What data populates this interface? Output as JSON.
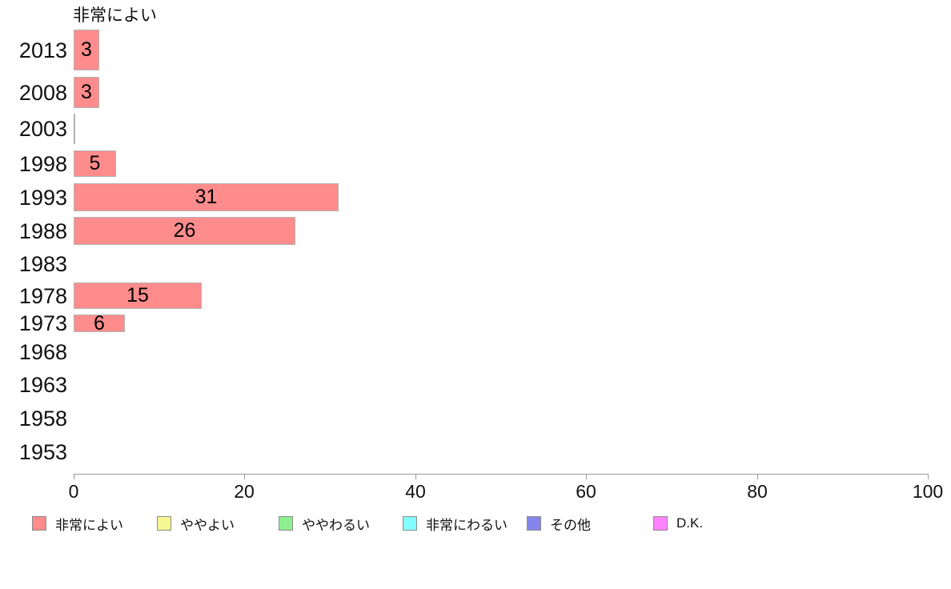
{
  "chart_data": {
    "type": "bar",
    "orientation": "horizontal",
    "title": "非常によい",
    "xlabel": "",
    "ylabel": "",
    "categories": [
      "2013",
      "2008",
      "2003",
      "1998",
      "1993",
      "1988",
      "1983",
      "1978",
      "1973",
      "1968",
      "1963",
      "1958",
      "1953"
    ],
    "values": [
      3,
      3,
      0,
      5,
      31,
      26,
      null,
      15,
      6,
      null,
      null,
      null,
      null
    ],
    "bar_labels": [
      "3",
      "3",
      "",
      "5",
      "31",
      "26",
      "",
      "15",
      "6",
      "",
      "",
      "",
      ""
    ],
    "xlim": [
      0,
      100
    ],
    "x_ticks": [
      0,
      20,
      40,
      60,
      80,
      100
    ],
    "grid": false,
    "legend_position": "bottom",
    "series_color": "#ff8c8c",
    "bar_border_color": "#b3b3b3",
    "axis_color": "#999999",
    "legend": [
      {
        "label": "非常によい",
        "color": "#ff8c8c"
      },
      {
        "label": "ややよい",
        "color": "#f6f692"
      },
      {
        "label": "ややわるい",
        "color": "#8fee8f"
      },
      {
        "label": "非常にわるい",
        "color": "#82ffff"
      },
      {
        "label": "その他",
        "color": "#8585eb"
      },
      {
        "label": "D.K.",
        "color": "#ff82ff"
      }
    ]
  }
}
